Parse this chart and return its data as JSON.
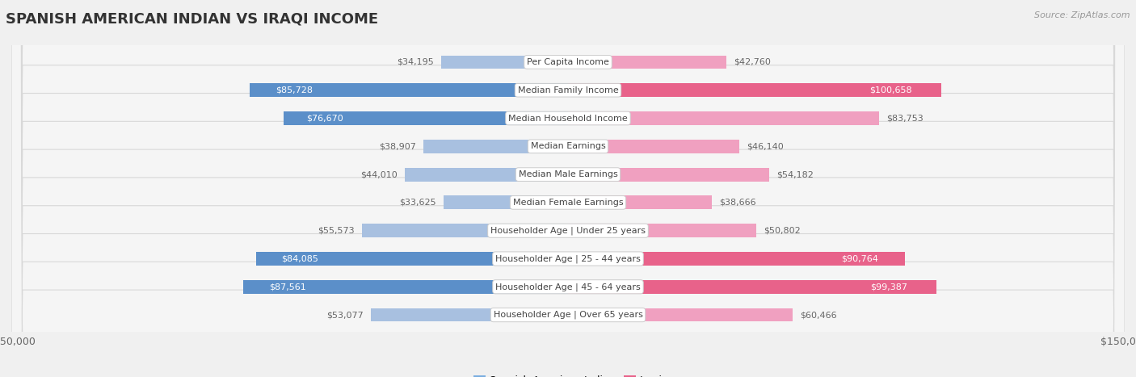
{
  "title": "SPANISH AMERICAN INDIAN VS IRAQI INCOME",
  "source": "Source: ZipAtlas.com",
  "categories": [
    "Per Capita Income",
    "Median Family Income",
    "Median Household Income",
    "Median Earnings",
    "Median Male Earnings",
    "Median Female Earnings",
    "Householder Age | Under 25 years",
    "Householder Age | 25 - 44 years",
    "Householder Age | 45 - 64 years",
    "Householder Age | Over 65 years"
  ],
  "spanish_values": [
    34195,
    85728,
    76670,
    38907,
    44010,
    33625,
    55573,
    84085,
    87561,
    53077
  ],
  "iraqi_values": [
    42760,
    100658,
    83753,
    46140,
    54182,
    38666,
    50802,
    90764,
    99387,
    60466
  ],
  "spanish_labels": [
    "$34,195",
    "$85,728",
    "$76,670",
    "$38,907",
    "$44,010",
    "$33,625",
    "$55,573",
    "$84,085",
    "$87,561",
    "$53,077"
  ],
  "iraqi_labels": [
    "$42,760",
    "$100,658",
    "$83,753",
    "$46,140",
    "$54,182",
    "$38,666",
    "$50,802",
    "$90,764",
    "$99,387",
    "$60,466"
  ],
  "max_val": 150000,
  "spanish_color_light": "#a8c0e0",
  "spanish_color_dark": "#5b8fc9",
  "iraqi_color_light": "#f0a0c0",
  "iraqi_color_dark": "#e8628a",
  "bg_color": "#f0f0f0",
  "row_bg_color": "#f5f5f5",
  "row_border_color": "#d8d8d8",
  "label_threshold_s": 75000,
  "label_threshold_i": 88000,
  "title_fontsize": 13,
  "tick_label_fontsize": 9,
  "bar_label_fontsize": 8,
  "cat_label_fontsize": 8,
  "legend_patch_s": "#7aade0",
  "legend_patch_i": "#e8628a"
}
